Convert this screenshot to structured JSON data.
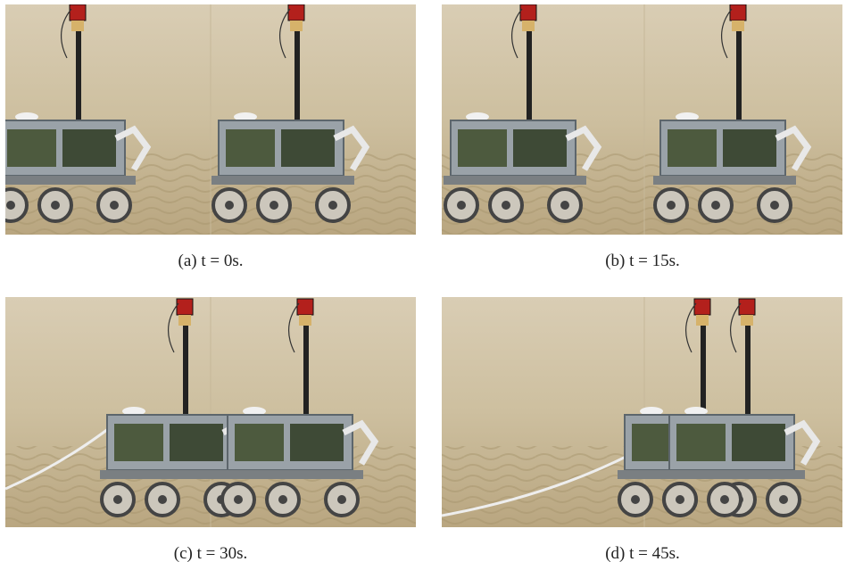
{
  "figure": {
    "panels": [
      {
        "caption": "(a) t = 0s."
      },
      {
        "caption": "(b) t = 15s."
      },
      {
        "caption": "(c) t = 30s."
      },
      {
        "caption": "(d) t = 45s."
      }
    ]
  }
}
